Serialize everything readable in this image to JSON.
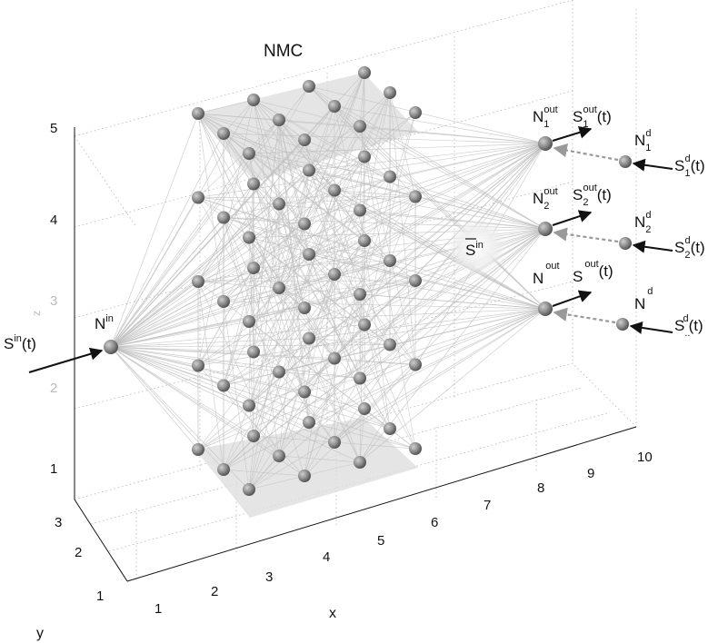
{
  "title": "NMC",
  "axes": {
    "x": {
      "label": "x",
      "ticks": [
        "1",
        "2",
        "3",
        "4",
        "5",
        "6",
        "7",
        "8",
        "9",
        "10"
      ]
    },
    "y": {
      "label": "y",
      "ticks": [
        "1",
        "2",
        "3"
      ]
    },
    "z": {
      "label": "z",
      "ticks": [
        "1",
        "2",
        "3",
        "4",
        "5"
      ]
    }
  },
  "input": {
    "neuron": "N",
    "neuron_sup": "in",
    "signal": "S",
    "signal_sup": "in",
    "signal_arg": "(t)"
  },
  "mean_signal": {
    "symbol": "S",
    "sup": "in"
  },
  "outputs": [
    {
      "n_sub": "1",
      "n_sup": "out",
      "s_sub": "1",
      "s_sup": "out",
      "d_sub": "1",
      "d_sup": "d",
      "sd_sub": "1",
      "sd_sup": "d",
      "arg": "(t)",
      "main": "N",
      "sig": "S"
    },
    {
      "n_sub": "2",
      "n_sup": "out",
      "s_sub": "2",
      "s_sup": "out",
      "d_sub": "2",
      "d_sup": "d",
      "sd_sub": "2",
      "sd_sup": "d",
      "arg": "(t)",
      "main": "N",
      "sig": "S"
    },
    {
      "n_sub": "",
      "n_sup": "out",
      "s_sub": "",
      "s_sup": "out",
      "d_sub": "",
      "d_sup": "d",
      "sd_sub": "..",
      "sd_sup": "d",
      "arg": "(t)",
      "main": "N",
      "sig": "S"
    }
  ],
  "colors": {
    "node": "#808080",
    "edge": "#c3c3c3",
    "arrow": "#111111",
    "feedback": "#9a9a9a",
    "plane": "#dcdcdc"
  }
}
